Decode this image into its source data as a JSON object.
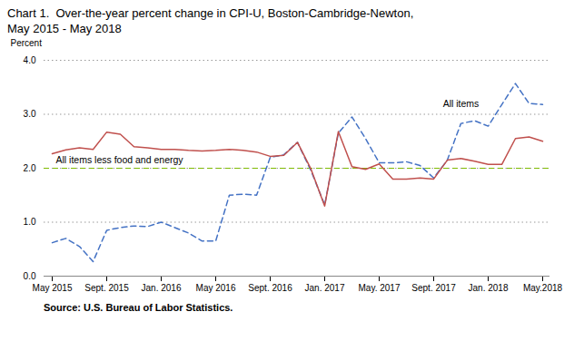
{
  "chart_data": {
    "type": "line",
    "title": "Chart 1.  Over-the-year percent change in CPI-U, Boston-Cambridge-Newton,",
    "subtitle": "May 2015 - May 2018",
    "source": "Source: U.S. Bureau of Labor Statistics.",
    "y_label": "Percent",
    "categories": [
      "May 2015",
      null,
      null,
      null,
      "Sept. 2015",
      null,
      null,
      null,
      "Jan. 2016",
      null,
      null,
      null,
      "May 2016",
      null,
      null,
      null,
      "Sept. 2016",
      null,
      null,
      null,
      "Jan. 2017",
      null,
      null,
      null,
      "May. 2017",
      null,
      null,
      null,
      "Sept. 2017",
      null,
      null,
      null,
      "Jan. 2018",
      null,
      null,
      null,
      "May.2018"
    ],
    "series": [
      {
        "name": "All items",
        "color": "#4472C4",
        "line_style": "dashed",
        "values": [
          0.62,
          0.7,
          0.55,
          0.27,
          0.85,
          0.9,
          0.93,
          0.92,
          1.0,
          0.9,
          0.8,
          0.65,
          0.65,
          1.5,
          1.52,
          1.5,
          2.2,
          2.25,
          2.48,
          1.95,
          1.32,
          2.65,
          2.95,
          2.55,
          2.1,
          2.1,
          2.12,
          2.05,
          1.82,
          2.15,
          2.83,
          2.88,
          2.78,
          3.18,
          3.57,
          3.2,
          3.18
        ]
      },
      {
        "name": "All items less food and energy",
        "color": "#C0504D",
        "line_style": "solid",
        "values": [
          2.27,
          2.34,
          2.38,
          2.35,
          2.67,
          2.63,
          2.4,
          2.38,
          2.35,
          2.35,
          2.33,
          2.32,
          2.33,
          2.35,
          2.33,
          2.3,
          2.22,
          2.24,
          2.48,
          1.98,
          1.3,
          2.68,
          2.03,
          1.98,
          2.08,
          1.8,
          1.8,
          1.82,
          1.8,
          2.15,
          2.18,
          2.13,
          2.07,
          2.07,
          2.55,
          2.58,
          2.5
        ]
      }
    ],
    "reference_line": {
      "value": 2.0,
      "color": "#7FBA00",
      "line_style": "dashed"
    },
    "ylim": [
      0.0,
      4.0
    ],
    "yticks": [
      {
        "value": 0.0,
        "label": "0.0"
      },
      {
        "value": 1.0,
        "label": "1.0"
      },
      {
        "value": 2.0,
        "label": "2.0"
      },
      {
        "value": 3.0,
        "label": "3.0"
      },
      {
        "value": 4.0,
        "label": "4.0"
      }
    ],
    "grid": true
  }
}
